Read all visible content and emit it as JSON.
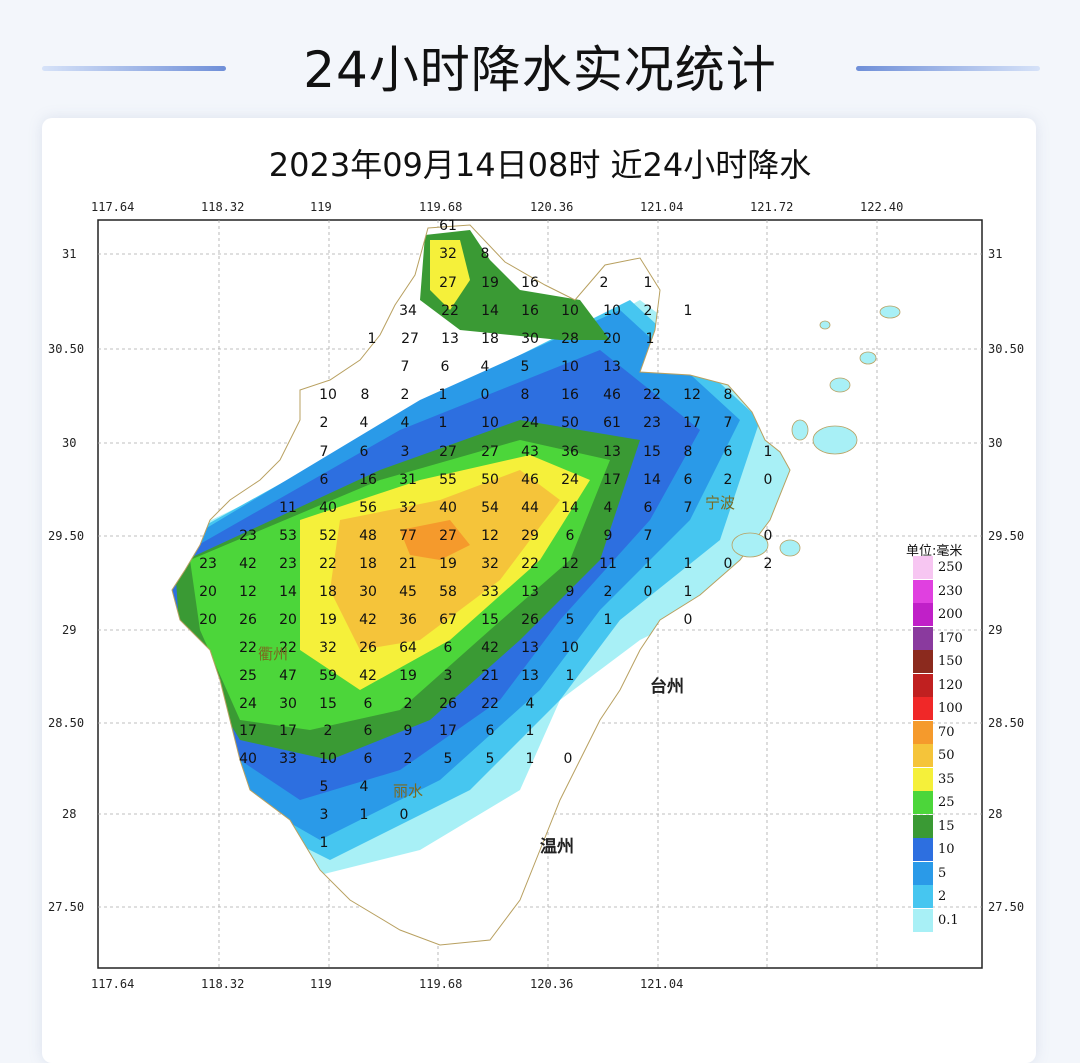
{
  "header": {
    "title": "24小时降水实况统计"
  },
  "map": {
    "title": "2023年09月14日08时  近24小时降水",
    "lon_ticks": [
      "117.64",
      "118.32",
      "119",
      "119.68",
      "120.36",
      "121.04",
      "121.72",
      "122.40"
    ],
    "lat_ticks": [
      "31",
      "30.50",
      "30",
      "29.50",
      "29",
      "28.50",
      "28",
      "27.50"
    ],
    "cities": [
      "台州",
      "温州",
      "衢州",
      "丽水",
      "宁波"
    ],
    "station_values": [
      "61",
      "32",
      "8",
      "27",
      "19",
      "16",
      "2",
      "1",
      "34",
      "22",
      "14",
      "16",
      "10",
      "10",
      "2",
      "1",
      "1",
      "27",
      "13",
      "18",
      "30",
      "28",
      "20",
      "1",
      "7",
      "6",
      "4",
      "5",
      "10",
      "13",
      "10",
      "8",
      "2",
      "1",
      "0",
      "8",
      "16",
      "46",
      "22",
      "12",
      "8",
      "2",
      "4",
      "4",
      "1",
      "10",
      "24",
      "50",
      "61",
      "23",
      "17",
      "7",
      "7",
      "6",
      "3",
      "27",
      "27",
      "43",
      "36",
      "13",
      "15",
      "8",
      "6",
      "1",
      "6",
      "16",
      "31",
      "55",
      "50",
      "46",
      "24",
      "17",
      "14",
      "6",
      "2",
      "0",
      "11",
      "40",
      "56",
      "32",
      "40",
      "54",
      "44",
      "14",
      "4",
      "6",
      "7",
      "23",
      "53",
      "52",
      "48",
      "77",
      "27",
      "12",
      "29",
      "6",
      "9",
      "7",
      "0",
      "23",
      "42",
      "23",
      "22",
      "18",
      "21",
      "19",
      "32",
      "22",
      "12",
      "11",
      "1",
      "1",
      "0",
      "2",
      "20",
      "12",
      "14",
      "18",
      "30",
      "45",
      "58",
      "33",
      "13",
      "9",
      "2",
      "0",
      "1",
      "20",
      "26",
      "20",
      "19",
      "42",
      "36",
      "67",
      "15",
      "26",
      "5",
      "1",
      "0",
      "22",
      "22",
      "32",
      "26",
      "64",
      "6",
      "42",
      "13",
      "10",
      "25",
      "47",
      "59",
      "42",
      "19",
      "3",
      "21",
      "13",
      "1",
      "24",
      "30",
      "15",
      "6",
      "2",
      "26",
      "22",
      "4",
      "17",
      "17",
      "2",
      "6",
      "9",
      "17",
      "6",
      "1",
      "40",
      "33",
      "10",
      "6",
      "2",
      "5",
      "5",
      "1",
      "0",
      "5",
      "4",
      "3",
      "1",
      "0",
      "1"
    ]
  },
  "legend": {
    "unit": "单位:毫米",
    "levels": [
      {
        "label": "250",
        "color": "#f7c6f2"
      },
      {
        "label": "230",
        "color": "#e040e0"
      },
      {
        "label": "200",
        "color": "#c020c8"
      },
      {
        "label": "170",
        "color": "#8a3a9e"
      },
      {
        "label": "150",
        "color": "#8b2a1e"
      },
      {
        "label": "120",
        "color": "#c02020"
      },
      {
        "label": "100",
        "color": "#f02828"
      },
      {
        "label": "70",
        "color": "#f59a2c"
      },
      {
        "label": "50",
        "color": "#f5c43a"
      },
      {
        "label": "35",
        "color": "#f5f03a"
      },
      {
        "label": "25",
        "color": "#4cd63a"
      },
      {
        "label": "15",
        "color": "#3a9a34"
      },
      {
        "label": "10",
        "color": "#2d6fe0"
      },
      {
        "label": "5",
        "color": "#2a9ae8"
      },
      {
        "label": "2",
        "color": "#46c6f0"
      },
      {
        "label": "0.1",
        "color": "#a8f0f6"
      }
    ]
  }
}
